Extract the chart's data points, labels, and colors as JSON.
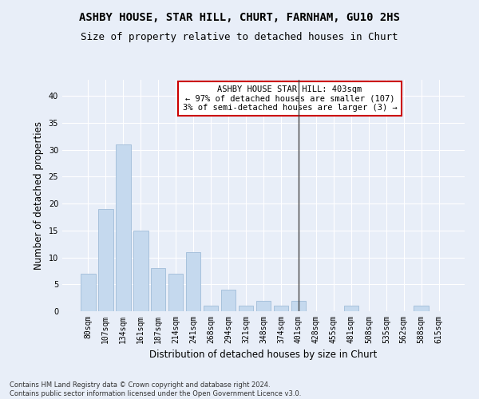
{
  "title": "ASHBY HOUSE, STAR HILL, CHURT, FARNHAM, GU10 2HS",
  "subtitle": "Size of property relative to detached houses in Churt",
  "xlabel": "Distribution of detached houses by size in Churt",
  "ylabel": "Number of detached properties",
  "categories": [
    "80sqm",
    "107sqm",
    "134sqm",
    "161sqm",
    "187sqm",
    "214sqm",
    "241sqm",
    "268sqm",
    "294sqm",
    "321sqm",
    "348sqm",
    "374sqm",
    "401sqm",
    "428sqm",
    "455sqm",
    "481sqm",
    "508sqm",
    "535sqm",
    "562sqm",
    "588sqm",
    "615sqm"
  ],
  "values": [
    7,
    19,
    31,
    15,
    8,
    7,
    11,
    1,
    4,
    1,
    2,
    1,
    2,
    0,
    0,
    1,
    0,
    0,
    0,
    1,
    0
  ],
  "bar_color": "#c5d9ee",
  "bar_edge_color": "#a0bcd8",
  "vline_x_index": 12,
  "vline_color": "#444444",
  "annotation_text": "ASHBY HOUSE STAR HILL: 403sqm\n← 97% of detached houses are smaller (107)\n3% of semi-detached houses are larger (3) →",
  "annotation_box_color": "#ffffff",
  "annotation_box_edge_color": "#cc0000",
  "ylim": [
    0,
    43
  ],
  "yticks": [
    0,
    5,
    10,
    15,
    20,
    25,
    30,
    35,
    40
  ],
  "footnote": "Contains HM Land Registry data © Crown copyright and database right 2024.\nContains public sector information licensed under the Open Government Licence v3.0.",
  "bg_color": "#e8eef8",
  "grid_color": "#ffffff",
  "title_fontsize": 10,
  "subtitle_fontsize": 9,
  "axis_label_fontsize": 8.5,
  "tick_fontsize": 7,
  "annotation_fontsize": 7.5,
  "footnote_fontsize": 6
}
